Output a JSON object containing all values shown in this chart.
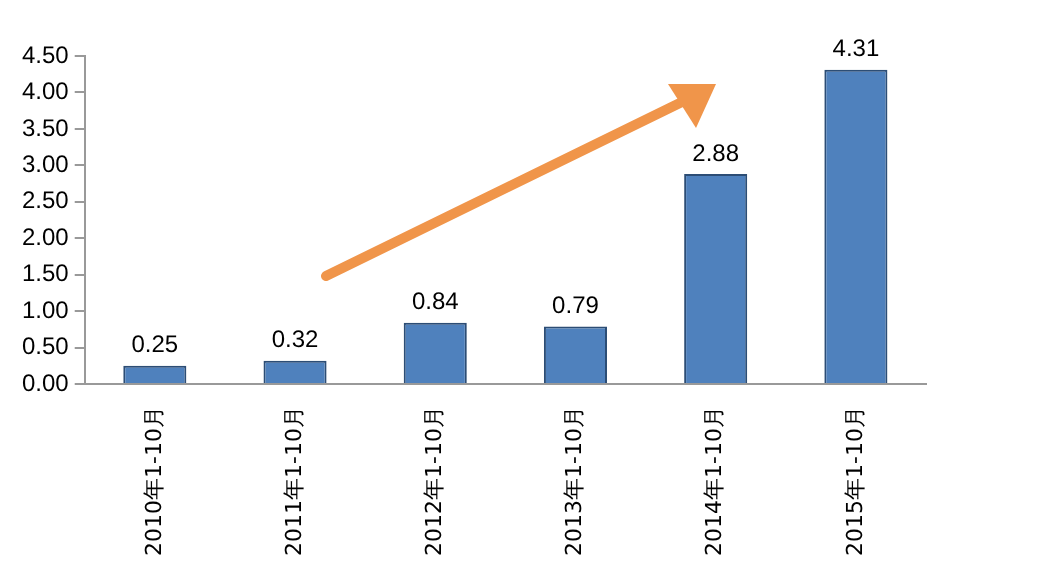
{
  "chart_data": {
    "type": "bar",
    "categories": [
      "2010年1-10月",
      "2011年1-10月",
      "2012年1-10月",
      "2013年1-10月",
      "2014年1-10月",
      "2015年1-10月"
    ],
    "values": [
      0.25,
      0.32,
      0.84,
      0.79,
      2.88,
      4.31
    ],
    "color": "#4f81bd",
    "ylim": [
      0,
      4.5
    ],
    "yticks": [
      "0.00",
      "0.50",
      "1.00",
      "1.50",
      "2.00",
      "2.50",
      "3.00",
      "3.50",
      "4.00",
      "4.50"
    ],
    "data_labels": true,
    "grid": false,
    "legend": false
  }
}
